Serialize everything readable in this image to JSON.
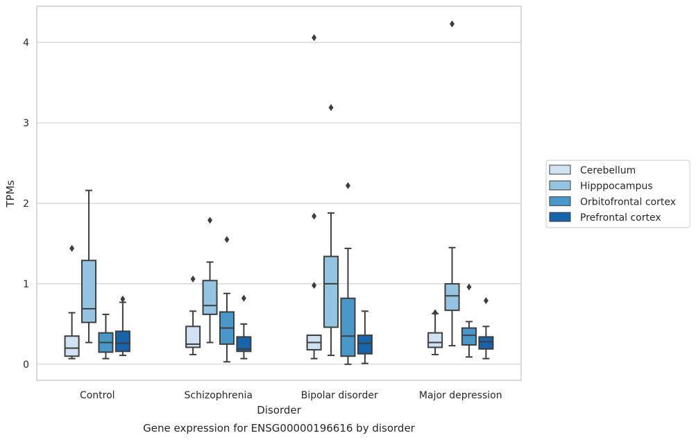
{
  "chart_data": {
    "type": "box",
    "xlabel": "Disorder",
    "ylabel": "TPMs",
    "caption": "Gene expression for ENSG00000196616 by disorder",
    "ylim": [
      -0.2,
      4.45
    ],
    "yticks": [
      0,
      1,
      2,
      3,
      4
    ],
    "grid": "horizontal",
    "legend_position": "right",
    "categories": [
      "Control",
      "Schizophrenia",
      "Bipolar disorder",
      "Major depression"
    ],
    "series": [
      {
        "name": "Cerebellum",
        "color": "#d0e1f2",
        "boxes": [
          {
            "whislo": 0.07,
            "q1": 0.1,
            "med": 0.2,
            "q3": 0.35,
            "whishi": 0.64,
            "fliers": [
              1.44
            ]
          },
          {
            "whislo": 0.12,
            "q1": 0.21,
            "med": 0.25,
            "q3": 0.47,
            "whishi": 0.66,
            "fliers": [
              1.06
            ]
          },
          {
            "whislo": 0.07,
            "q1": 0.18,
            "med": 0.27,
            "q3": 0.36,
            "whishi": 0.36,
            "fliers": [
              0.98,
              1.84,
              4.06
            ]
          },
          {
            "whislo": 0.12,
            "q1": 0.21,
            "med": 0.27,
            "q3": 0.39,
            "whishi": 0.63,
            "fliers": [
              0.64
            ]
          }
        ]
      },
      {
        "name": "Hipppocampus",
        "color": "#94c4df",
        "boxes": [
          {
            "whislo": 0.27,
            "q1": 0.52,
            "med": 0.69,
            "q3": 1.29,
            "whishi": 2.16,
            "fliers": []
          },
          {
            "whislo": 0.27,
            "q1": 0.62,
            "med": 0.73,
            "q3": 1.04,
            "whishi": 1.27,
            "fliers": [
              1.79
            ]
          },
          {
            "whislo": 0.11,
            "q1": 0.46,
            "med": 1.0,
            "q3": 1.34,
            "whishi": 1.88,
            "fliers": [
              3.19
            ]
          },
          {
            "whislo": 0.23,
            "q1": 0.67,
            "med": 0.85,
            "q3": 1.0,
            "whishi": 1.45,
            "fliers": [
              4.23
            ]
          }
        ]
      },
      {
        "name": "Orbitofrontal cortex",
        "color": "#4a98c9",
        "boxes": [
          {
            "whislo": 0.07,
            "q1": 0.15,
            "med": 0.27,
            "q3": 0.39,
            "whishi": 0.62,
            "fliers": []
          },
          {
            "whislo": 0.03,
            "q1": 0.25,
            "med": 0.45,
            "q3": 0.65,
            "whishi": 0.88,
            "fliers": [
              1.55
            ]
          },
          {
            "whislo": 0.0,
            "q1": 0.1,
            "med": 0.35,
            "q3": 0.82,
            "whishi": 1.44,
            "fliers": [
              2.22
            ]
          },
          {
            "whislo": 0.09,
            "q1": 0.24,
            "med": 0.36,
            "q3": 0.45,
            "whishi": 0.53,
            "fliers": [
              0.96
            ]
          }
        ]
      },
      {
        "name": "Prefrontal cortex",
        "color": "#1764ab",
        "boxes": [
          {
            "whislo": 0.11,
            "q1": 0.16,
            "med": 0.26,
            "q3": 0.41,
            "whishi": 0.77,
            "fliers": [
              0.81
            ]
          },
          {
            "whislo": 0.07,
            "q1": 0.16,
            "med": 0.19,
            "q3": 0.34,
            "whishi": 0.5,
            "fliers": [
              0.82
            ]
          },
          {
            "whislo": 0.01,
            "q1": 0.13,
            "med": 0.26,
            "q3": 0.36,
            "whishi": 0.66,
            "fliers": []
          },
          {
            "whislo": 0.07,
            "q1": 0.19,
            "med": 0.28,
            "q3": 0.34,
            "whishi": 0.47,
            "fliers": [
              0.79
            ]
          }
        ]
      }
    ]
  }
}
